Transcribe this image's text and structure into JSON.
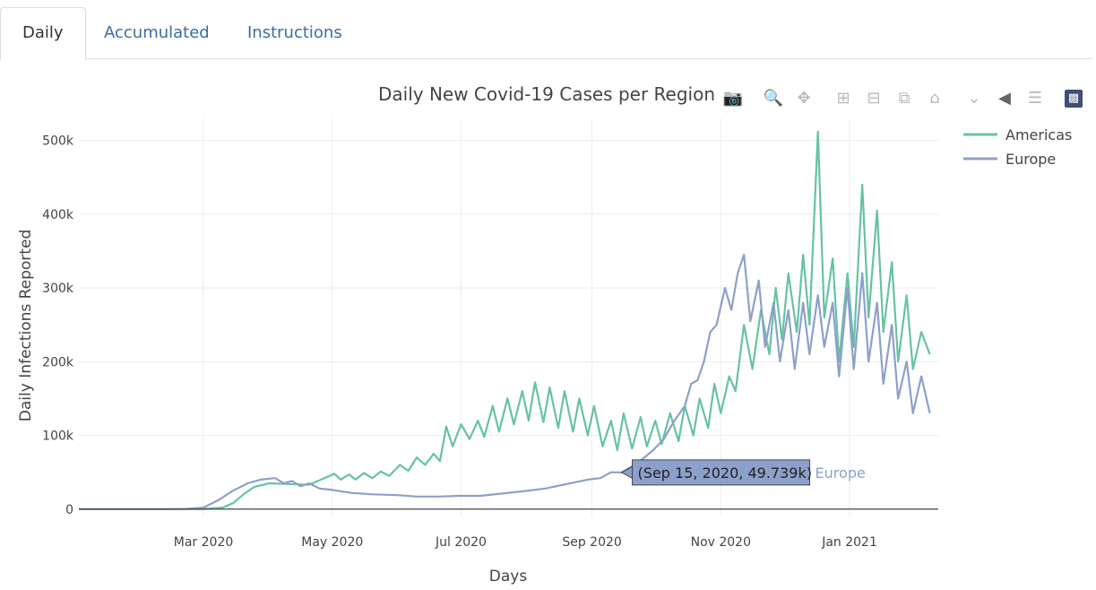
{
  "tabs": [
    {
      "label": "Daily",
      "active": true
    },
    {
      "label": "Accumulated",
      "active": false
    },
    {
      "label": "Instructions",
      "active": false
    }
  ],
  "modebar": {
    "icons": [
      "camera-icon",
      "zoom-icon",
      "pan-icon",
      "zoom-in-icon",
      "zoom-out-icon",
      "autoscale-icon",
      "reset-axes-icon",
      "spike-lines-icon",
      "hover-closest-icon",
      "hover-compare-icon",
      "plotly-logo-icon"
    ]
  },
  "colors": {
    "americas": "#66c2a5",
    "europe": "#8da0cb",
    "tooltip_bg": "#8da0cb"
  },
  "chart_data": {
    "type": "line",
    "title": "Daily New Covid-19 Cases per Region",
    "xlabel": "Days",
    "ylabel": "Daily Infections Reported",
    "xlim": [
      "2020-01-02",
      "2021-02-12"
    ],
    "ylim": [
      -10000,
      530000
    ],
    "yticks": [
      0,
      100000,
      200000,
      300000,
      400000,
      500000
    ],
    "ytick_labels": [
      "0",
      "100k",
      "200k",
      "300k",
      "400k",
      "500k"
    ],
    "xticks": [
      "2020-03-01",
      "2020-05-01",
      "2020-07-01",
      "2020-09-01",
      "2020-11-01",
      "2021-01-01"
    ],
    "xtick_labels": [
      "Mar 2020",
      "May 2020",
      "Jul 2020",
      "Sep 2020",
      "Nov 2020",
      "Jan 2021"
    ],
    "grid": true,
    "legend_position": "top-right",
    "series": [
      {
        "name": "Americas",
        "color": "#66c2a5",
        "points": [
          [
            "2020-01-02",
            0
          ],
          [
            "2020-02-15",
            0
          ],
          [
            "2020-03-01",
            100
          ],
          [
            "2020-03-10",
            2000
          ],
          [
            "2020-03-15",
            8000
          ],
          [
            "2020-03-20",
            20000
          ],
          [
            "2020-03-25",
            30000
          ],
          [
            "2020-04-01",
            35000
          ],
          [
            "2020-04-10",
            34000
          ],
          [
            "2020-04-20",
            33000
          ],
          [
            "2020-04-29",
            44000
          ],
          [
            "2020-05-02",
            48000
          ],
          [
            "2020-05-05",
            40000
          ],
          [
            "2020-05-09",
            47000
          ],
          [
            "2020-05-12",
            40000
          ],
          [
            "2020-05-16",
            49000
          ],
          [
            "2020-05-20",
            42000
          ],
          [
            "2020-05-24",
            51000
          ],
          [
            "2020-05-28",
            45000
          ],
          [
            "2020-06-02",
            60000
          ],
          [
            "2020-06-06",
            52000
          ],
          [
            "2020-06-10",
            70000
          ],
          [
            "2020-06-14",
            60000
          ],
          [
            "2020-06-18",
            75000
          ],
          [
            "2020-06-21",
            65000
          ],
          [
            "2020-06-24",
            112000
          ],
          [
            "2020-06-27",
            85000
          ],
          [
            "2020-07-01",
            115000
          ],
          [
            "2020-07-05",
            95000
          ],
          [
            "2020-07-09",
            120000
          ],
          [
            "2020-07-12",
            98000
          ],
          [
            "2020-07-16",
            140000
          ],
          [
            "2020-07-19",
            105000
          ],
          [
            "2020-07-23",
            150000
          ],
          [
            "2020-07-26",
            115000
          ],
          [
            "2020-07-30",
            160000
          ],
          [
            "2020-08-02",
            120000
          ],
          [
            "2020-08-05",
            172000
          ],
          [
            "2020-08-09",
            118000
          ],
          [
            "2020-08-12",
            165000
          ],
          [
            "2020-08-16",
            110000
          ],
          [
            "2020-08-19",
            160000
          ],
          [
            "2020-08-23",
            105000
          ],
          [
            "2020-08-26",
            150000
          ],
          [
            "2020-08-30",
            100000
          ],
          [
            "2020-09-02",
            140000
          ],
          [
            "2020-09-06",
            85000
          ],
          [
            "2020-09-10",
            120000
          ],
          [
            "2020-09-13",
            80000
          ],
          [
            "2020-09-16",
            130000
          ],
          [
            "2020-09-20",
            82000
          ],
          [
            "2020-09-24",
            125000
          ],
          [
            "2020-09-27",
            85000
          ],
          [
            "2020-10-01",
            120000
          ],
          [
            "2020-10-04",
            88000
          ],
          [
            "2020-10-08",
            130000
          ],
          [
            "2020-10-12",
            92000
          ],
          [
            "2020-10-15",
            140000
          ],
          [
            "2020-10-19",
            100000
          ],
          [
            "2020-10-22",
            150000
          ],
          [
            "2020-10-26",
            110000
          ],
          [
            "2020-10-29",
            170000
          ],
          [
            "2020-11-01",
            130000
          ],
          [
            "2020-11-05",
            180000
          ],
          [
            "2020-11-08",
            160000
          ],
          [
            "2020-11-12",
            250000
          ],
          [
            "2020-11-16",
            190000
          ],
          [
            "2020-11-20",
            270000
          ],
          [
            "2020-11-24",
            210000
          ],
          [
            "2020-11-27",
            300000
          ],
          [
            "2020-11-30",
            230000
          ],
          [
            "2020-12-03",
            320000
          ],
          [
            "2020-12-07",
            240000
          ],
          [
            "2020-12-10",
            345000
          ],
          [
            "2020-12-13",
            250000
          ],
          [
            "2020-12-17",
            512000
          ],
          [
            "2020-12-20",
            260000
          ],
          [
            "2020-12-24",
            340000
          ],
          [
            "2020-12-27",
            200000
          ],
          [
            "2020-12-31",
            320000
          ],
          [
            "2021-01-03",
            220000
          ],
          [
            "2021-01-07",
            440000
          ],
          [
            "2021-01-10",
            260000
          ],
          [
            "2021-01-14",
            405000
          ],
          [
            "2021-01-17",
            240000
          ],
          [
            "2021-01-21",
            335000
          ],
          [
            "2021-01-24",
            200000
          ],
          [
            "2021-01-28",
            290000
          ],
          [
            "2021-01-31",
            190000
          ],
          [
            "2021-02-04",
            240000
          ],
          [
            "2021-02-08",
            210000
          ]
        ]
      },
      {
        "name": "Europe",
        "color": "#8da0cb",
        "points": [
          [
            "2020-01-02",
            0
          ],
          [
            "2020-02-20",
            0
          ],
          [
            "2020-03-01",
            2000
          ],
          [
            "2020-03-08",
            12000
          ],
          [
            "2020-03-15",
            25000
          ],
          [
            "2020-03-22",
            35000
          ],
          [
            "2020-03-28",
            40000
          ],
          [
            "2020-04-04",
            42000
          ],
          [
            "2020-04-08",
            35000
          ],
          [
            "2020-04-12",
            38000
          ],
          [
            "2020-04-16",
            31000
          ],
          [
            "2020-04-20",
            35000
          ],
          [
            "2020-04-25",
            28000
          ],
          [
            "2020-05-01",
            26000
          ],
          [
            "2020-05-10",
            22000
          ],
          [
            "2020-05-20",
            20000
          ],
          [
            "2020-06-01",
            19000
          ],
          [
            "2020-06-10",
            17000
          ],
          [
            "2020-06-20",
            17000
          ],
          [
            "2020-06-30",
            18000
          ],
          [
            "2020-07-10",
            18000
          ],
          [
            "2020-07-20",
            21000
          ],
          [
            "2020-07-30",
            24000
          ],
          [
            "2020-08-10",
            28000
          ],
          [
            "2020-08-20",
            34000
          ],
          [
            "2020-08-30",
            40000
          ],
          [
            "2020-09-05",
            42000
          ],
          [
            "2020-09-10",
            50000
          ],
          [
            "2020-09-15",
            49739
          ],
          [
            "2020-09-20",
            58000
          ],
          [
            "2020-09-25",
            68000
          ],
          [
            "2020-09-30",
            80000
          ],
          [
            "2020-10-05",
            95000
          ],
          [
            "2020-10-10",
            120000
          ],
          [
            "2020-10-15",
            140000
          ],
          [
            "2020-10-18",
            170000
          ],
          [
            "2020-10-21",
            175000
          ],
          [
            "2020-10-24",
            200000
          ],
          [
            "2020-10-27",
            240000
          ],
          [
            "2020-10-30",
            250000
          ],
          [
            "2020-11-03",
            300000
          ],
          [
            "2020-11-06",
            270000
          ],
          [
            "2020-11-09",
            320000
          ],
          [
            "2020-11-12",
            345000
          ],
          [
            "2020-11-15",
            255000
          ],
          [
            "2020-11-19",
            310000
          ],
          [
            "2020-11-22",
            220000
          ],
          [
            "2020-11-26",
            280000
          ],
          [
            "2020-11-29",
            200000
          ],
          [
            "2020-12-03",
            270000
          ],
          [
            "2020-12-06",
            190000
          ],
          [
            "2020-12-10",
            280000
          ],
          [
            "2020-12-13",
            210000
          ],
          [
            "2020-12-17",
            290000
          ],
          [
            "2020-12-20",
            220000
          ],
          [
            "2020-12-24",
            280000
          ],
          [
            "2020-12-27",
            180000
          ],
          [
            "2020-12-31",
            300000
          ],
          [
            "2021-01-03",
            190000
          ],
          [
            "2021-01-07",
            320000
          ],
          [
            "2021-01-10",
            200000
          ],
          [
            "2021-01-14",
            280000
          ],
          [
            "2021-01-17",
            170000
          ],
          [
            "2021-01-21",
            250000
          ],
          [
            "2021-01-24",
            150000
          ],
          [
            "2021-01-28",
            200000
          ],
          [
            "2021-01-31",
            130000
          ],
          [
            "2021-02-04",
            180000
          ],
          [
            "2021-02-08",
            130000
          ]
        ]
      }
    ],
    "hover_label": {
      "text": "(Sep 15, 2020, 49.739k)",
      "series": "Europe",
      "x": "2020-09-15",
      "y": 49739
    }
  }
}
